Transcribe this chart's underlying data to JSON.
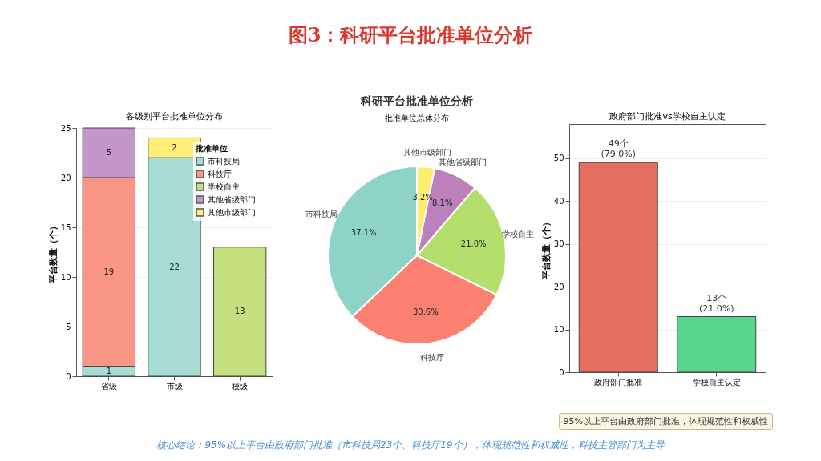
{
  "chart_data": [
    {
      "type": "other",
      "title": "图3：科研平台批准单位分析",
      "subtitle": "科研平台批准单位分析",
      "annotations": [
        "核心结论：95%以上平台由政府部门批准（市科技局23个、科技厅19个），体现规范性和权威性，科技主管部门为主导",
        "95%以上平台由政府部门批准，体现规范性和权威性"
      ]
    },
    {
      "type": "bar",
      "title": "各级别平台批准单位分布",
      "ylabel": "平台数量（个）",
      "legend_title": "批准单位",
      "categories": [
        "省级",
        "市级",
        "校级"
      ],
      "stacked": true,
      "series": [
        {
          "name": "市科技局",
          "color": "#a6dcd4",
          "values": [
            1,
            22,
            null
          ]
        },
        {
          "name": "科技厅",
          "color": "#f99585",
          "values": [
            19,
            null,
            null
          ]
        },
        {
          "name": "学校自主",
          "color": "#c5e07e",
          "values": [
            null,
            null,
            13
          ]
        },
        {
          "name": "其他省级部门",
          "color": "#c395c8",
          "values": [
            5,
            null,
            null
          ]
        },
        {
          "name": "其他市级部门",
          "color": "#ffef7a",
          "values": [
            null,
            2,
            null
          ]
        }
      ],
      "ylim": [
        0,
        25
      ],
      "yticks": [
        0,
        5,
        10,
        15,
        20,
        25
      ],
      "grid": "y",
      "legend": "top right",
      "data_labels": true
    },
    {
      "type": "pie",
      "title": "批准单位总体分布",
      "categories": [
        "市科技局",
        "科技厅",
        "学校自主",
        "其他省级部门",
        "其他市级部门"
      ],
      "values": [
        37.1,
        30.6,
        21.0,
        8.1,
        3.2
      ],
      "colors": [
        "#8dd3c7",
        "#fb8072",
        "#b3de69",
        "#bc80bd",
        "#ffed6f"
      ],
      "value_labels": [
        "37.1%",
        "30.6%",
        "21.0%",
        "8.1%",
        "3.2%"
      ]
    },
    {
      "type": "bar",
      "title": "政府部门批准vs学校自主认定",
      "ylabel": "平台数量（个）",
      "categories": [
        "政府部门批准",
        "学校自主认定"
      ],
      "values": [
        49,
        13
      ],
      "colors": [
        "#e76f5f",
        "#58d68d"
      ],
      "value_labels": [
        "49个\n(79.0%)",
        "13个\n(21.0%)"
      ],
      "ylim": [
        0,
        58
      ],
      "yticks": [
        0,
        10,
        20,
        30,
        40,
        50
      ],
      "grid": "y"
    }
  ]
}
